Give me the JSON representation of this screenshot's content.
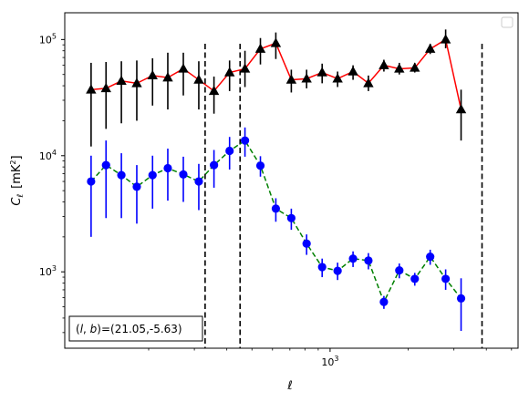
{
  "chart_data": {
    "type": "scatter",
    "xscale": "log",
    "yscale": "log",
    "xlim": [
      95,
      5300
    ],
    "ylim": [
      220,
      170000
    ],
    "xlabel": "ℓ",
    "ylabel_main": "C",
    "ylabel_sub": "ℓ",
    "ylabel_unit": "[mK",
    "ylabel_unit_sup": "2",
    "ylabel_unit_close": "]",
    "x_ticks": [
      {
        "value": 1000,
        "base": "10",
        "exp": "3"
      }
    ],
    "y_ticks": [
      {
        "value": 1000,
        "base": "10",
        "exp": "3"
      },
      {
        "value": 10000,
        "base": "10",
        "exp": "4"
      },
      {
        "value": 100000,
        "base": "10",
        "exp": "5"
      }
    ],
    "vlines": [
      330,
      450,
      3850
    ],
    "annotation": {
      "prefix": "(",
      "l": "l",
      "comma": ", ",
      "b": "b",
      "suffix": ")=(21.05,-5.63)"
    },
    "series": [
      {
        "marker": "triangle",
        "marker_color": "#000000",
        "line_color": "#ff0000",
        "line_style": "solid",
        "points": [
          {
            "x": 120,
            "y": 37000,
            "lo": 12000,
            "hi": 63000
          },
          {
            "x": 137,
            "y": 38000,
            "lo": 17000,
            "hi": 64000
          },
          {
            "x": 157,
            "y": 44000,
            "lo": 19000,
            "hi": 65000
          },
          {
            "x": 180,
            "y": 42000,
            "lo": 20000,
            "hi": 66000
          },
          {
            "x": 207,
            "y": 49000,
            "lo": 27000,
            "hi": 69000
          },
          {
            "x": 237,
            "y": 47000,
            "lo": 25000,
            "hi": 77000
          },
          {
            "x": 272,
            "y": 56000,
            "lo": 33000,
            "hi": 77000
          },
          {
            "x": 312,
            "y": 45000,
            "lo": 25000,
            "hi": 65000
          },
          {
            "x": 357,
            "y": 36000,
            "lo": 23000,
            "hi": 48000
          },
          {
            "x": 410,
            "y": 52000,
            "lo": 36000,
            "hi": 66000
          },
          {
            "x": 470,
            "y": 56000,
            "lo": 39000,
            "hi": 80000
          },
          {
            "x": 539,
            "y": 83000,
            "lo": 61000,
            "hi": 103000
          },
          {
            "x": 618,
            "y": 93000,
            "lo": 68000,
            "hi": 115000
          },
          {
            "x": 709,
            "y": 45000,
            "lo": 35000,
            "hi": 55000
          },
          {
            "x": 812,
            "y": 46000,
            "lo": 38000,
            "hi": 55000
          },
          {
            "x": 932,
            "y": 52000,
            "lo": 42000,
            "hi": 62000
          },
          {
            "x": 1069,
            "y": 46000,
            "lo": 39000,
            "hi": 53000
          },
          {
            "x": 1226,
            "y": 53000,
            "lo": 45000,
            "hi": 60000
          },
          {
            "x": 1405,
            "y": 42000,
            "lo": 36000,
            "hi": 49000
          },
          {
            "x": 1612,
            "y": 60000,
            "lo": 53000,
            "hi": 67000
          },
          {
            "x": 1848,
            "y": 56000,
            "lo": 50000,
            "hi": 63000
          },
          {
            "x": 2120,
            "y": 57000,
            "lo": 52000,
            "hi": 63000
          },
          {
            "x": 2431,
            "y": 83000,
            "lo": 75000,
            "hi": 92000
          },
          {
            "x": 2788,
            "y": 100000,
            "lo": 84000,
            "hi": 122000
          },
          {
            "x": 3197,
            "y": 25000,
            "lo": 13500,
            "hi": 37000
          }
        ]
      },
      {
        "marker": "circle",
        "marker_color": "#0000ff",
        "line_color": "#008000",
        "line_style": "dashed",
        "points": [
          {
            "x": 120,
            "y": 6000,
            "lo": 2000,
            "hi": 10000
          },
          {
            "x": 137,
            "y": 8300,
            "lo": 2900,
            "hi": 13500
          },
          {
            "x": 157,
            "y": 6800,
            "lo": 2900,
            "hi": 10500
          },
          {
            "x": 180,
            "y": 5400,
            "lo": 2600,
            "hi": 8300
          },
          {
            "x": 207,
            "y": 6800,
            "lo": 3500,
            "hi": 10000
          },
          {
            "x": 237,
            "y": 7800,
            "lo": 4100,
            "hi": 11500
          },
          {
            "x": 272,
            "y": 6900,
            "lo": 4000,
            "hi": 9800
          },
          {
            "x": 312,
            "y": 6000,
            "lo": 3400,
            "hi": 8500
          },
          {
            "x": 357,
            "y": 8300,
            "lo": 5300,
            "hi": 11200
          },
          {
            "x": 410,
            "y": 11000,
            "lo": 7600,
            "hi": 14500
          },
          {
            "x": 470,
            "y": 13500,
            "lo": 9800,
            "hi": 17500
          },
          {
            "x": 539,
            "y": 8200,
            "lo": 6600,
            "hi": 9900
          },
          {
            "x": 618,
            "y": 3500,
            "lo": 2700,
            "hi": 4300
          },
          {
            "x": 709,
            "y": 2900,
            "lo": 2300,
            "hi": 3500
          },
          {
            "x": 812,
            "y": 1750,
            "lo": 1400,
            "hi": 2100
          },
          {
            "x": 932,
            "y": 1100,
            "lo": 900,
            "hi": 1300
          },
          {
            "x": 1069,
            "y": 1020,
            "lo": 850,
            "hi": 1200
          },
          {
            "x": 1226,
            "y": 1300,
            "lo": 1100,
            "hi": 1500
          },
          {
            "x": 1405,
            "y": 1250,
            "lo": 1050,
            "hi": 1450
          },
          {
            "x": 1612,
            "y": 550,
            "lo": 480,
            "hi": 620
          },
          {
            "x": 1848,
            "y": 1030,
            "lo": 880,
            "hi": 1180
          },
          {
            "x": 2120,
            "y": 870,
            "lo": 760,
            "hi": 980
          },
          {
            "x": 2431,
            "y": 1350,
            "lo": 1150,
            "hi": 1550
          },
          {
            "x": 2788,
            "y": 870,
            "lo": 700,
            "hi": 1050
          },
          {
            "x": 3197,
            "y": 590,
            "lo": 310,
            "hi": 880
          }
        ]
      }
    ]
  }
}
